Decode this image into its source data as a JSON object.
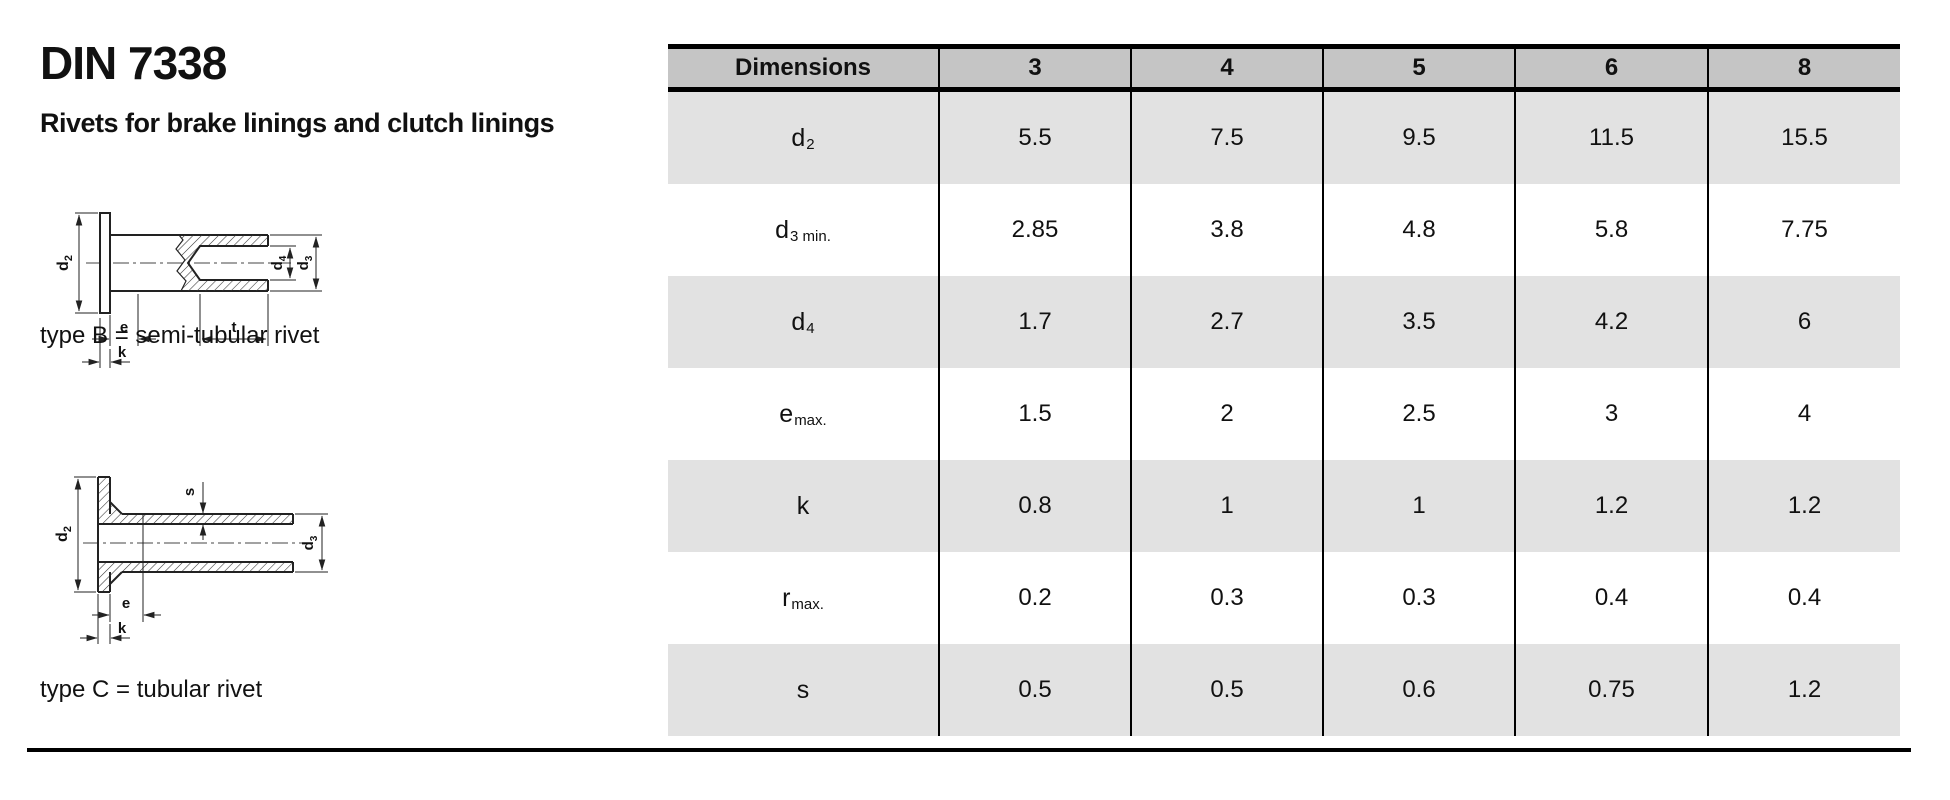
{
  "page": {
    "title": "DIN 7338",
    "subtitle": "Rivets for brake linings and clutch linings"
  },
  "drawings": {
    "type_b": {
      "caption": "type B = semi-tubular rivet",
      "labels": {
        "d2_base": "d",
        "d2_sub": "2",
        "d3_base": "d",
        "d3_sub": "3",
        "d4_base": "d",
        "d4_sub": "4",
        "e": "e",
        "k": "k",
        "t": "t"
      }
    },
    "type_c": {
      "caption": "type C = tubular rivet",
      "labels": {
        "d2_base": "d",
        "d2_sub": "2",
        "d3_base": "d",
        "d3_sub": "3",
        "s": "s",
        "e": "e",
        "k": "k"
      }
    }
  },
  "table": {
    "header": [
      "Dimensions",
      "3",
      "4",
      "5",
      "6",
      "8"
    ],
    "rows": [
      {
        "label_base": "d",
        "label_sub": "2",
        "values": [
          "5.5",
          "7.5",
          "9.5",
          "11.5",
          "15.5"
        ]
      },
      {
        "label_base": "d",
        "label_sub": "3 min.",
        "values": [
          "2.85",
          "3.8",
          "4.8",
          "5.8",
          "7.75"
        ]
      },
      {
        "label_base": "d",
        "label_sub": "4",
        "values": [
          "1.7",
          "2.7",
          "3.5",
          "4.2",
          "6"
        ]
      },
      {
        "label_base": "e",
        "label_sub": "max.",
        "values": [
          "1.5",
          "2",
          "2.5",
          "3",
          "4"
        ]
      },
      {
        "label_base": "k",
        "label_sub": "",
        "values": [
          "0.8",
          "1",
          "1",
          "1.2",
          "1.2"
        ]
      },
      {
        "label_base": "r",
        "label_sub": "max.",
        "values": [
          "0.2",
          "0.3",
          "0.3",
          "0.4",
          "0.4"
        ]
      },
      {
        "label_base": "s",
        "label_sub": "",
        "values": [
          "0.5",
          "0.5",
          "0.6",
          "0.75",
          "1.2"
        ]
      }
    ]
  },
  "colors": {
    "header_bg": "#c5c5c5",
    "row_alt_bg": "#e2e2e2",
    "border": "#000000",
    "text": "#111111"
  }
}
